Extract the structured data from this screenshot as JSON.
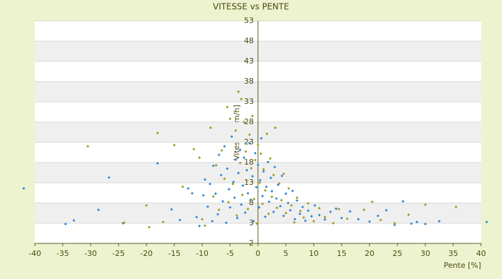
{
  "chart_data": {
    "type": "scatter",
    "title": "VITESSE vs PENTE",
    "x_label": "Pente [%]",
    "y_label": "Vitesse [km/h]",
    "xlim": [
      -40,
      40
    ],
    "xticks": [
      -40,
      -35,
      -30,
      -25,
      -20,
      -15,
      -10,
      -5,
      0,
      5,
      10,
      15,
      20,
      25,
      30,
      35,
      40
    ],
    "ylim": [
      -2,
      53
    ],
    "yticks": [
      -2,
      3,
      8,
      13,
      18,
      23,
      28,
      33,
      38,
      43,
      48,
      53
    ],
    "grid": true,
    "series": [
      {
        "color": "#2f86d6",
        "x": [
          -42,
          -34.5,
          -33,
          -28.6,
          -26.7,
          -24.2,
          -18,
          -15.5,
          -14,
          -12.5,
          -11.8,
          -11,
          -10.5,
          -9.8,
          -9.5,
          -9,
          -8.6,
          -8.2,
          -8,
          -7.6,
          -7.2,
          -7,
          -6.6,
          -6.3,
          -6,
          -5.7,
          -5.5,
          -5.2,
          -5,
          -4.7,
          -4.4,
          -4.2,
          -4,
          -3.7,
          -3.5,
          -3.2,
          -3,
          -2.7,
          -2.5,
          -2.3,
          -2,
          -1.8,
          -1.5,
          -1.3,
          -1,
          -0.8,
          -0.5,
          -0.3,
          0,
          0.2,
          0.4,
          0.6,
          0.8,
          1,
          1.3,
          1.5,
          1.8,
          2,
          2.3,
          2.5,
          2.8,
          3,
          3.3,
          3.6,
          4,
          4.3,
          4.6,
          5,
          5.4,
          5.8,
          6.2,
          6.6,
          7,
          7.5,
          8,
          8.5,
          9,
          9.6,
          10.2,
          11,
          12,
          13,
          14,
          15,
          16.5,
          18,
          20,
          21.5,
          23,
          24.5,
          26,
          27.5,
          28.5,
          30,
          32.5,
          41
        ],
        "values": [
          11.6,
          2.8,
          3.7,
          6.3,
          14.3,
          3.0,
          17.8,
          6.4,
          3.8,
          11.6,
          10.4,
          4.5,
          2.3,
          9.9,
          13.8,
          7.1,
          12.7,
          3.5,
          17.2,
          10.3,
          5.2,
          19.9,
          14.9,
          8.4,
          22.0,
          3.1,
          16.5,
          11.4,
          6.9,
          24.4,
          13.2,
          9.3,
          18.7,
          4.3,
          15.4,
          21.1,
          7.6,
          12.3,
          19.2,
          5.6,
          16.1,
          10.4,
          22.8,
          8.8,
          14.6,
          3.5,
          20.3,
          11.9,
          17.4,
          6.9,
          13.6,
          24.0,
          9.7,
          15.8,
          4.6,
          12.0,
          18.1,
          8.3,
          14.2,
          10.9,
          5.8,
          16.9,
          9.1,
          12.5,
          7.2,
          14.7,
          4.8,
          10.3,
          8.0,
          6.2,
          11.0,
          4.0,
          8.6,
          5.3,
          7.0,
          3.6,
          6.1,
          4.7,
          7.4,
          5.0,
          3.9,
          5.8,
          6.6,
          4.3,
          5.9,
          4.0,
          3.4,
          4.8,
          6.2,
          2.6,
          8.4,
          2.9,
          3.3,
          2.8,
          3.5,
          3.3
        ]
      },
      {
        "color": "#9c9c1c",
        "x": [
          -30.5,
          -24,
          -20,
          -19.5,
          -18,
          -17,
          -15,
          -13.5,
          -11.5,
          -10.5,
          -10,
          -9.5,
          -8.5,
          -8,
          -7.5,
          -7,
          -6.5,
          -6,
          -5.5,
          -5.3,
          -5,
          -4.5,
          -4,
          -3.8,
          -3.5,
          -3.2,
          -3,
          -2.8,
          -2.5,
          -2.2,
          -2,
          -1.8,
          -1.5,
          -1.2,
          -1,
          -0.7,
          -0.5,
          -0.2,
          0,
          0.3,
          0.5,
          0.8,
          1,
          1.3,
          1.6,
          1.9,
          2.2,
          2.5,
          2.8,
          3.1,
          3.4,
          3.8,
          4.2,
          4.6,
          5,
          5.5,
          6,
          6.5,
          7,
          7.6,
          8.2,
          9,
          10,
          11,
          12,
          13.5,
          14.5,
          16,
          19,
          20.5,
          22,
          24.5,
          27,
          30,
          35.5
        ],
        "values": [
          22.0,
          3.1,
          7.4,
          2.0,
          25.3,
          3.3,
          22.3,
          12.0,
          21.3,
          19.2,
          4.0,
          2.4,
          26.6,
          9.6,
          17.3,
          6.3,
          21.0,
          14.0,
          31.7,
          8.2,
          28.8,
          12.7,
          25.9,
          4.9,
          35.5,
          17.9,
          33.7,
          10.0,
          28.0,
          20.7,
          13.5,
          6.5,
          24.9,
          16.6,
          29.5,
          9.0,
          18.6,
          2.9,
          22.3,
          13.0,
          20.2,
          7.8,
          16.3,
          11.1,
          25.1,
          5.3,
          19.0,
          9.5,
          14.9,
          26.6,
          6.8,
          12.8,
          8.7,
          15.2,
          5.5,
          11.6,
          7.4,
          3.2,
          9.3,
          6.0,
          4.4,
          7.9,
          3.5,
          6.7,
          4.5,
          3.0,
          6.5,
          4.1,
          6.3,
          8.3,
          3.8,
          3.0,
          5.1,
          7.6,
          7.0
        ]
      }
    ]
  }
}
